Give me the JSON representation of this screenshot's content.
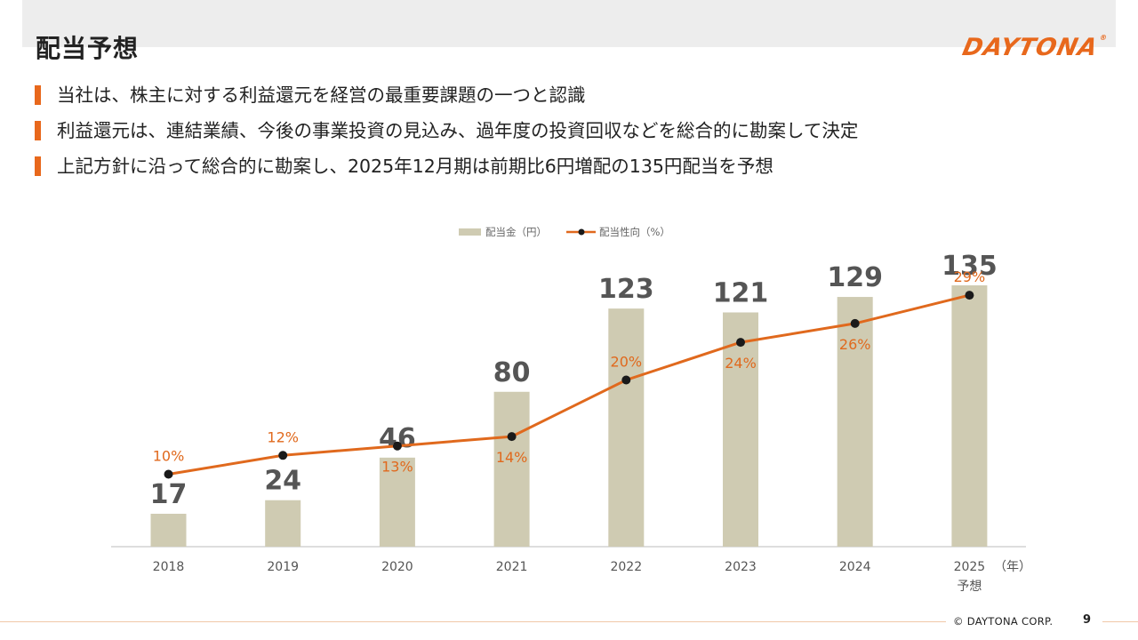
{
  "header": {
    "title": "配当予想",
    "logo_text": "DAYTONA",
    "logo_mark": "®"
  },
  "bullets": [
    "当社は、株主に対する利益還元を経営の最重要課題の一つと認識",
    "利益還元は、連結業績、今後の事業投資の見込み、過年度の投資回収などを総合的に勘案して決定",
    "上記方針に沿って総合的に勘案し、2025年12月期は前期比6円増配の135円配当を予想"
  ],
  "chart_data": {
    "type": "bar",
    "categories": [
      "2018",
      "2019",
      "2020",
      "2021",
      "2022",
      "2023",
      "2024",
      "2025"
    ],
    "category_sublabels": [
      "",
      "",
      "",
      "",
      "",
      "",
      "",
      "予想"
    ],
    "x_unit_label": "（年）",
    "series": [
      {
        "name": "配当金（円）",
        "type": "bar",
        "values": [
          17,
          24,
          46,
          80,
          123,
          121,
          129,
          135
        ],
        "color": "#cfcbb2"
      },
      {
        "name": "配当性向（%）",
        "type": "line",
        "values": [
          10,
          12,
          13,
          14,
          20,
          24,
          26,
          29
        ],
        "color": "#e0691d",
        "label_suffix": "%"
      }
    ],
    "bar_label_color": "#555555",
    "legend_position": "top-center",
    "grid": false
  },
  "footer": {
    "copyright": "© DAYTONA CORP.",
    "page_number": "9"
  }
}
